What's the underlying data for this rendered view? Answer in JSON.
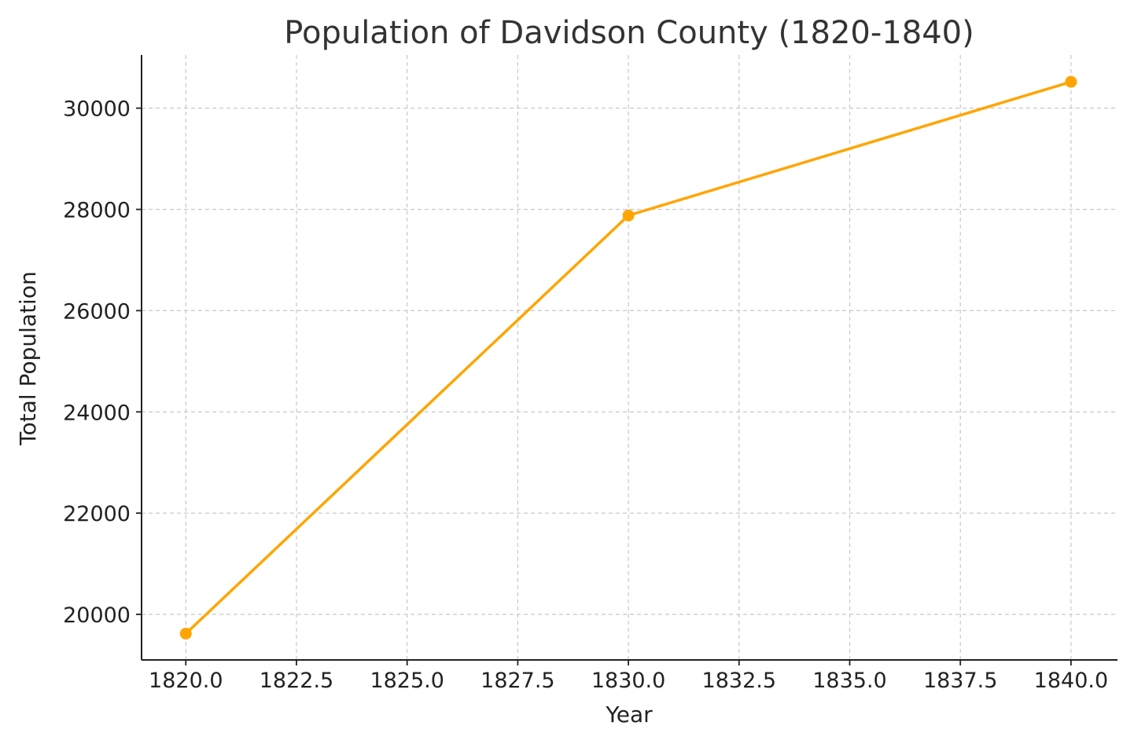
{
  "chart_data": {
    "type": "line",
    "title": "Population of Davidson County (1820-1840)",
    "xlabel": "Year",
    "ylabel": "Total Population",
    "xlim": [
      1819,
      1841.05
    ],
    "ylim": [
      19100,
      31050
    ],
    "x_ticks": [
      1820,
      1822.5,
      1825,
      1827.5,
      1830,
      1832.5,
      1835,
      1837.5,
      1840
    ],
    "x_tick_labels": [
      "1820.0",
      "1822.5",
      "1825.0",
      "1827.5",
      "1830.0",
      "1832.5",
      "1835.0",
      "1837.5",
      "1840.0"
    ],
    "y_ticks": [
      20000,
      22000,
      24000,
      26000,
      28000,
      30000
    ],
    "y_tick_labels": [
      "20000",
      "22000",
      "24000",
      "26000",
      "28000",
      "30000"
    ],
    "grid": true,
    "series": [
      {
        "x": [
          1820,
          1830,
          1840
        ],
        "values": [
          19620,
          27880,
          30520
        ],
        "color": "#FFA500",
        "marker": "circle"
      }
    ]
  }
}
